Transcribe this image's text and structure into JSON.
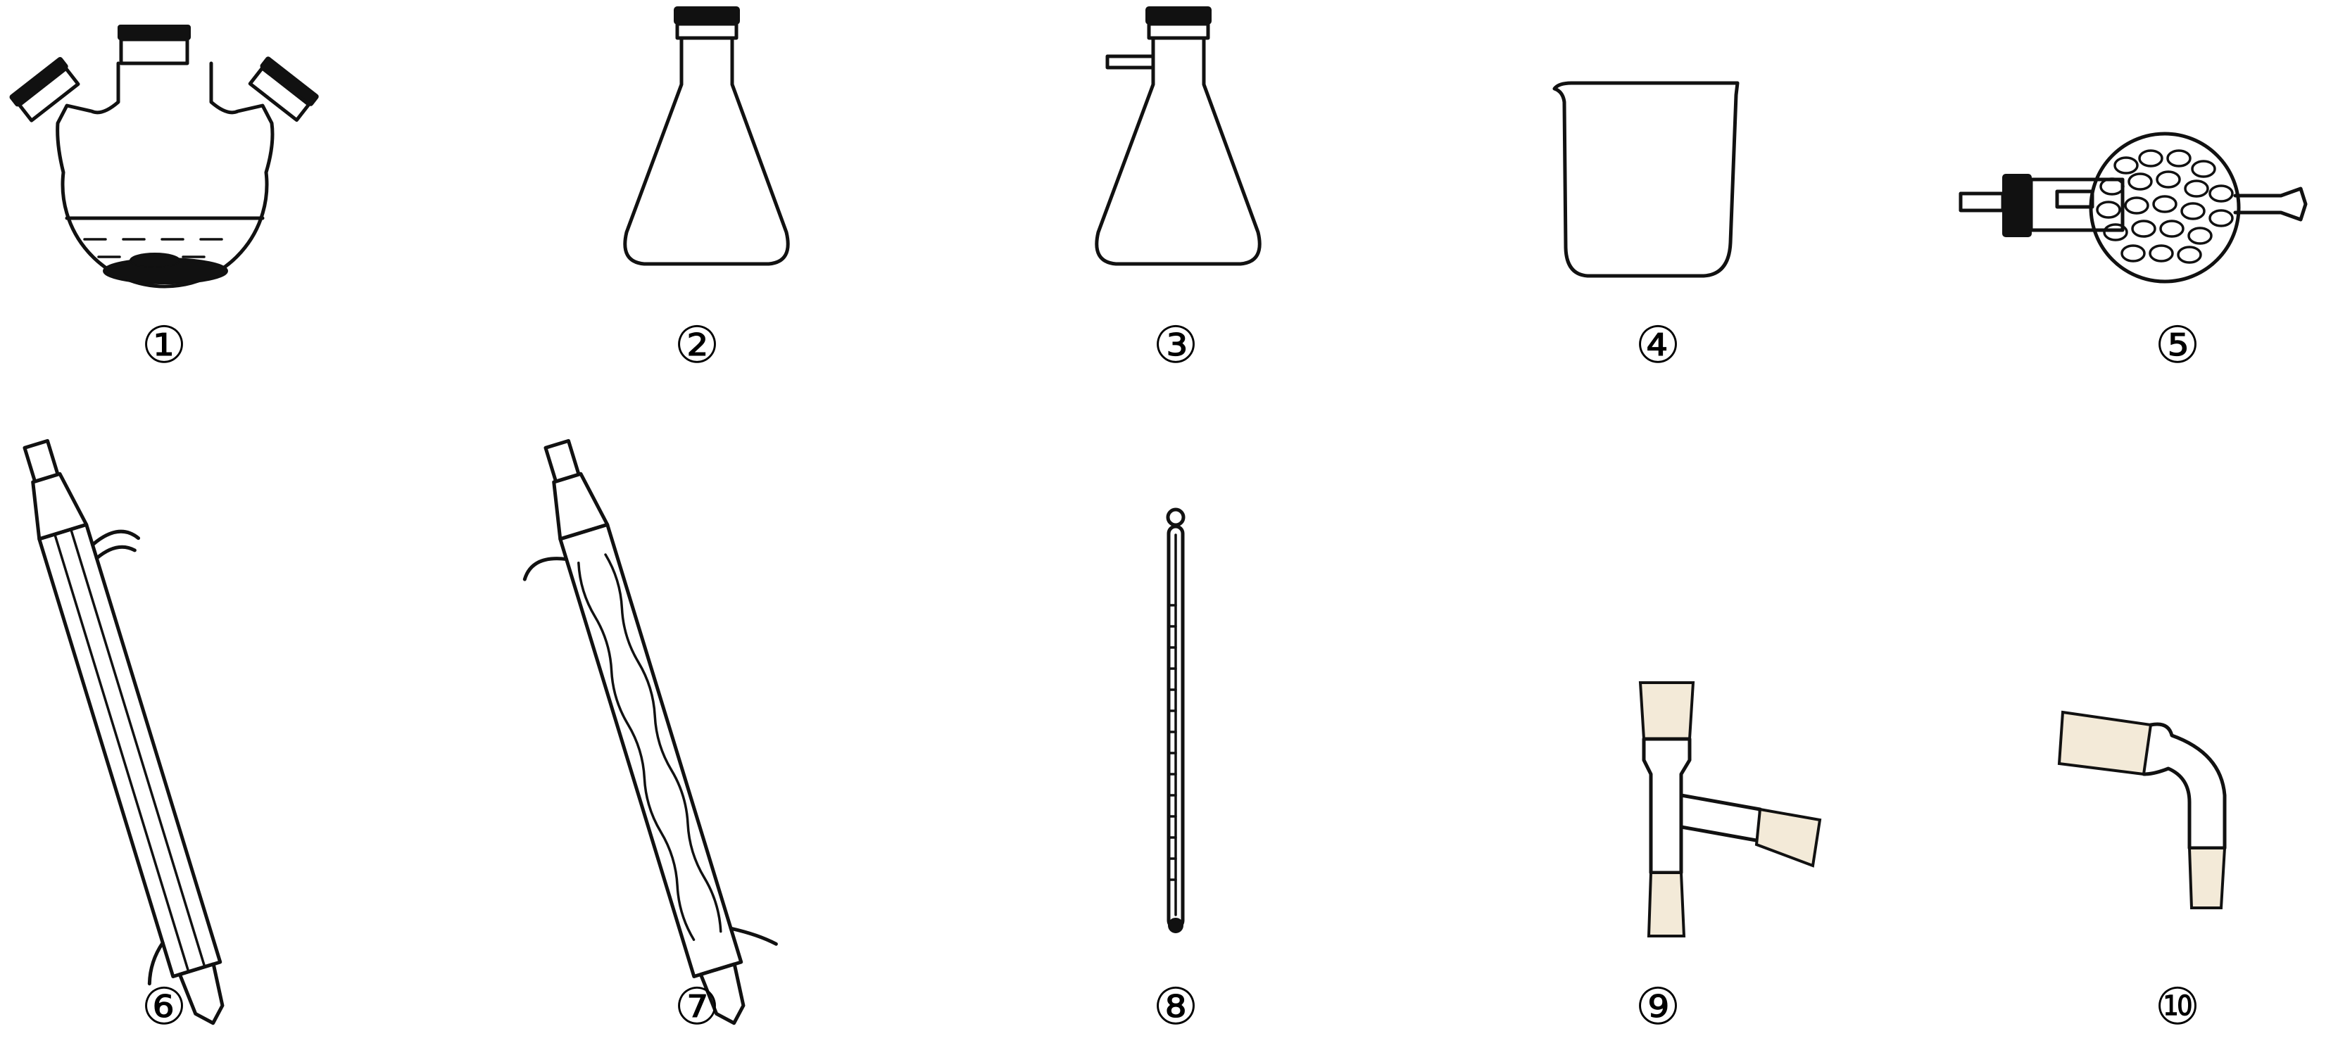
{
  "figure": {
    "items": [
      {
        "number": "①",
        "icon": "three-neck-round-bottom-flask-icon"
      },
      {
        "number": "②",
        "icon": "conical-flask-icon"
      },
      {
        "number": "③",
        "icon": "suction-flask-icon"
      },
      {
        "number": "④",
        "icon": "beaker-icon"
      },
      {
        "number": "⑤",
        "icon": "drying-tube-icon"
      },
      {
        "number": "⑥",
        "icon": "straight-condenser-icon"
      },
      {
        "number": "⑦",
        "icon": "bulb-condenser-icon"
      },
      {
        "number": "⑧",
        "icon": "thermometer-icon"
      },
      {
        "number": "⑨",
        "icon": "distillation-head-icon"
      },
      {
        "number": "⑩",
        "icon": "bent-adapter-icon"
      }
    ]
  }
}
